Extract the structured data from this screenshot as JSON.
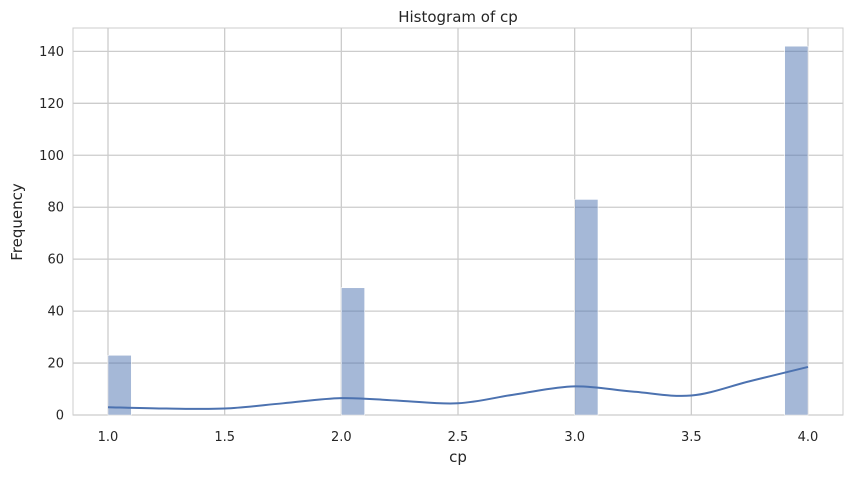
{
  "chart_data": {
    "type": "histogram",
    "title": "Histogram of cp",
    "xlabel": "cp",
    "ylabel": "Frequency",
    "xlim": [
      0.85,
      4.15
    ],
    "ylim": [
      0,
      149
    ],
    "x_ticks": [
      1.0,
      1.5,
      2.0,
      2.5,
      3.0,
      3.5,
      4.0
    ],
    "x_tick_labels": [
      "1.0",
      "1.5",
      "2.0",
      "2.5",
      "3.0",
      "3.5",
      "4.0"
    ],
    "y_ticks": [
      0,
      20,
      40,
      60,
      80,
      100,
      120,
      140
    ],
    "y_tick_labels": [
      "0",
      "20",
      "40",
      "60",
      "80",
      "100",
      "120",
      "140"
    ],
    "grid": true,
    "bin_width": 0.1,
    "bars": [
      {
        "x_start": 1.0,
        "x_end": 1.1,
        "count": 23
      },
      {
        "x_start": 2.0,
        "x_end": 2.1,
        "count": 49
      },
      {
        "x_start": 3.0,
        "x_end": 3.1,
        "count": 83
      },
      {
        "x_start": 3.9,
        "x_end": 4.0,
        "count": 142
      }
    ],
    "kde_curve": {
      "x": [
        1.0,
        1.25,
        1.5,
        1.75,
        2.0,
        2.25,
        2.5,
        2.75,
        3.0,
        3.25,
        3.5,
        3.75,
        4.0
      ],
      "y": [
        3,
        2.5,
        2.5,
        4.5,
        6.5,
        5.5,
        4.5,
        8,
        11,
        9,
        7.5,
        13,
        18.5
      ]
    },
    "colors": {
      "bar_fill": "#4c72b0",
      "bar_opacity": "0.5",
      "kde_line": "#4c72b0",
      "grid": "#cccccc",
      "background": "#ffffff"
    }
  }
}
